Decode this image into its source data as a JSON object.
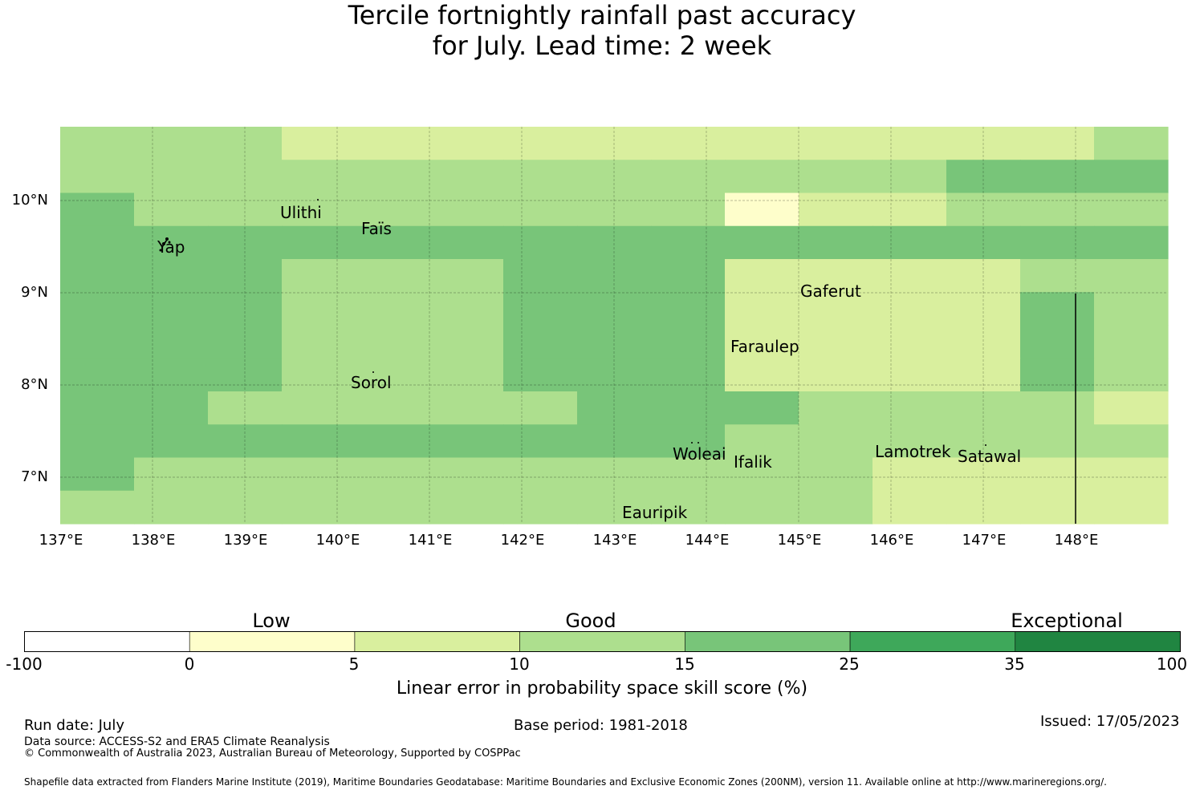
{
  "title_line1": "Tercile fortnightly rainfall past accuracy",
  "title_line2": "for July. Lead time: 2 week",
  "map": {
    "lon_labels": [
      "137°E",
      "138°E",
      "139°E",
      "140°E",
      "141°E",
      "142°E",
      "143°E",
      "144°E",
      "145°E",
      "146°E",
      "147°E",
      "148°E"
    ],
    "lat_labels": [
      "10°N",
      "9°N",
      "8°N",
      "7°N"
    ],
    "places": [
      "Ulithi",
      "Yap",
      "Faïs",
      "Gaferut",
      "Faraulep",
      "Sorol",
      "Woleai",
      "Ifalik",
      "Lamotrek",
      "Satawal",
      "Eauripik"
    ],
    "grid_colors": [
      "#fefecb",
      "#d9ef9e",
      "#addf8e",
      "#78c579"
    ],
    "cell_rows": [
      "222111111111112",
      "222222222222333",
      "322222222011222",
      "333333333333333",
      "333222333111122",
      "333222333111132",
      "333222333111132",
      "333222333111132",
      "332222233322221",
      "333333333222222",
      "322222222221111",
      "222222222221111"
    ]
  },
  "colorbar": {
    "title": "Linear error in probability space skill score (%)",
    "categories": [
      "Low",
      "Good",
      "Exceptional"
    ],
    "ticks": [
      "-100",
      "0",
      "5",
      "10",
      "15",
      "25",
      "35",
      "100"
    ],
    "colors": [
      "#ffffff",
      "#fefecb",
      "#d9ef9e",
      "#addf8e",
      "#78c579",
      "#3ea85a",
      "#208541"
    ]
  },
  "footer": {
    "run_date": "Run date: July",
    "base_period": "Base period: 1981-2018",
    "issued": "Issued: 17/05/2023",
    "data_source": "Data source: ACCESS-S2 and ERA5 Climate Reanalysis",
    "copyright": "© Commonwealth of Australia 2023, Australian Bureau of Meteorology, Supported by COSPPac",
    "shapefile": "Shapefile data extracted from Flanders Marine Institute (2019), Maritime Boundaries Geodatabase: Maritime Boundaries and Exclusive Economic Zones (200NM), version 11. Available online at http://www.marineregions.org/."
  }
}
